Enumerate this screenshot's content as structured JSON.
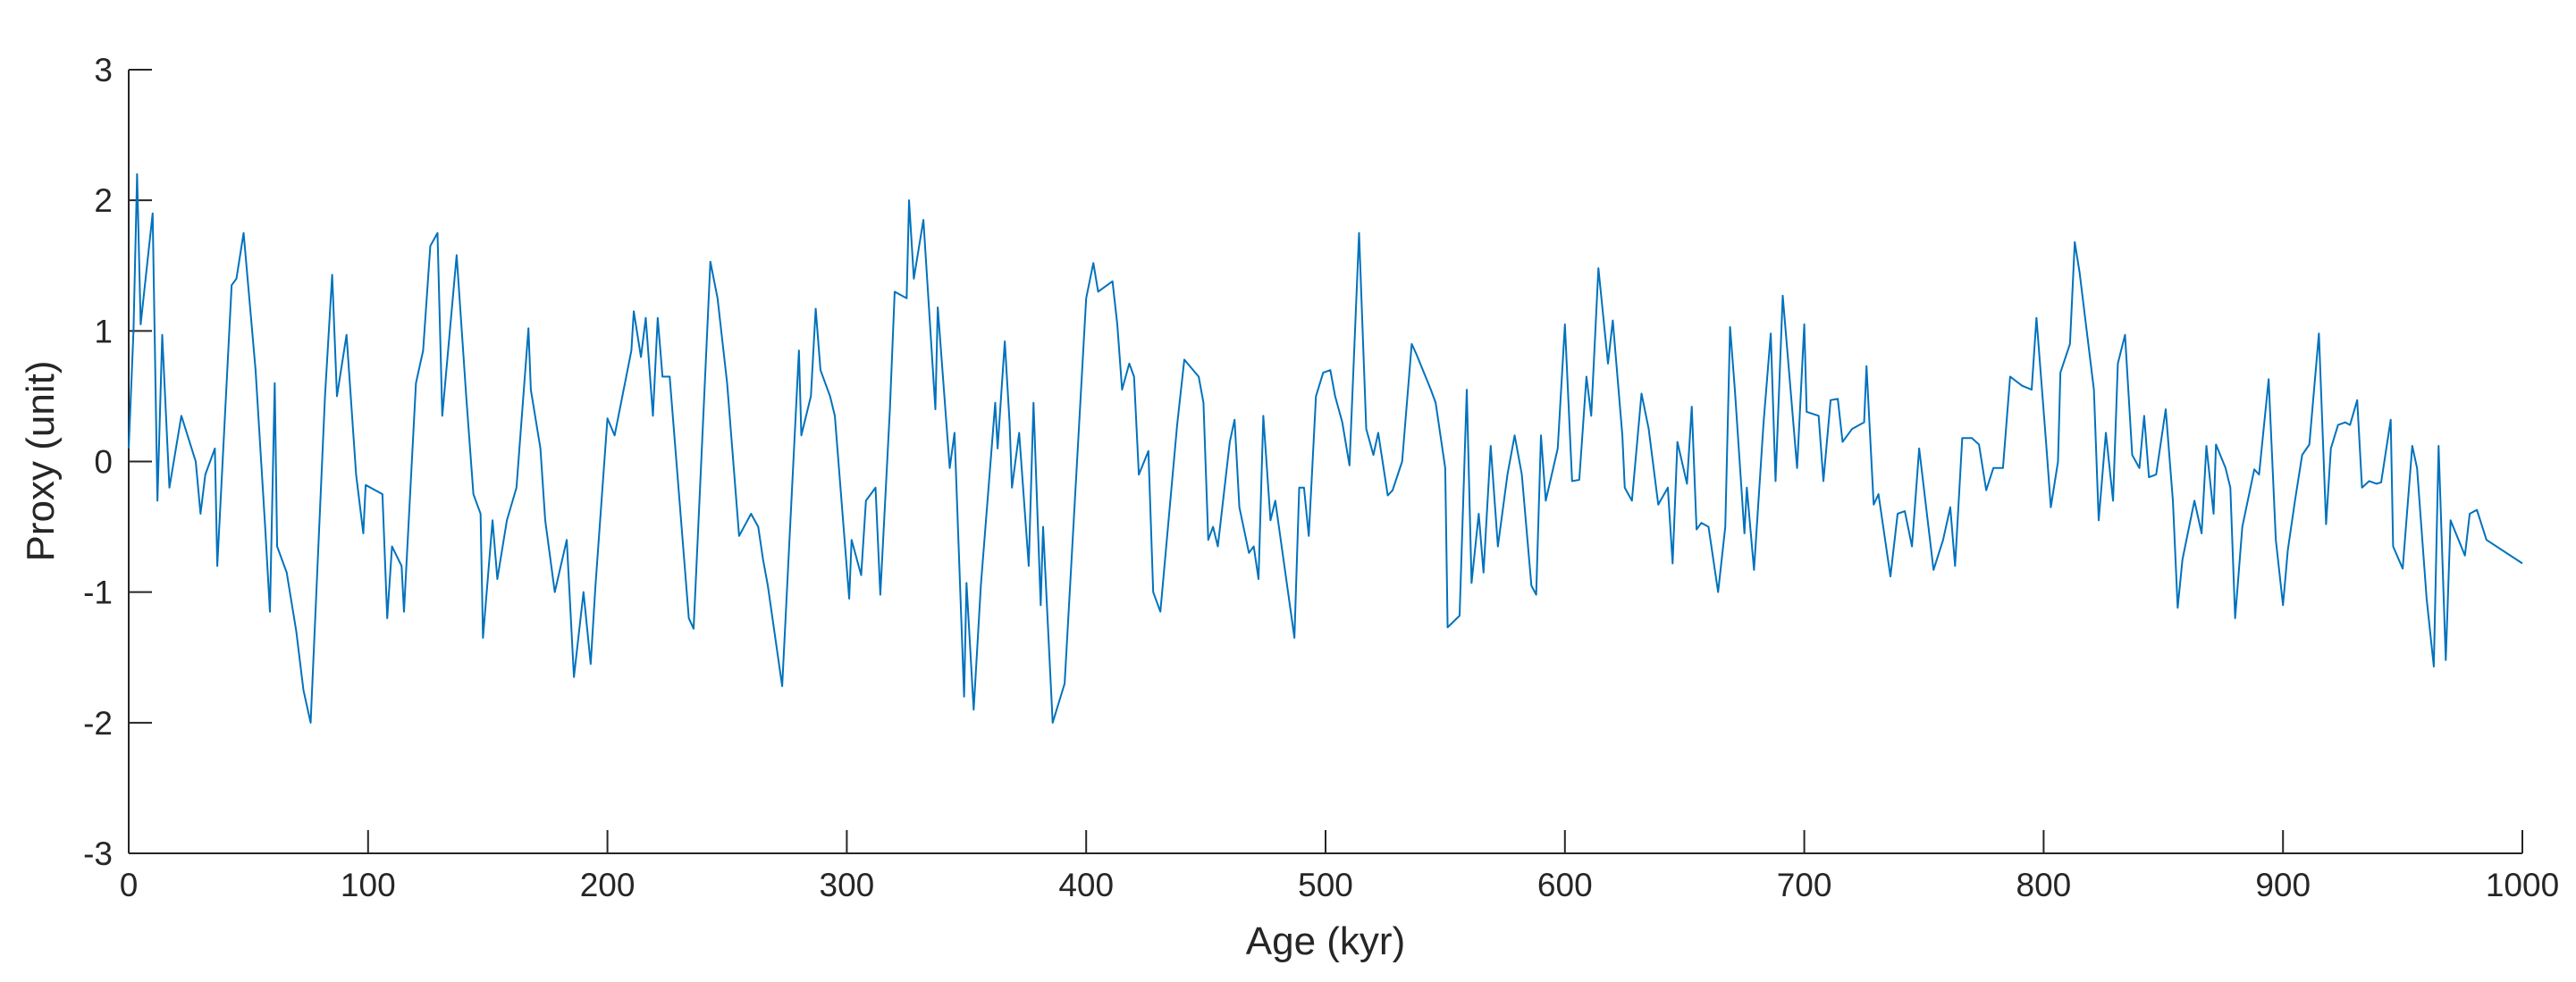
{
  "chart_data": {
    "type": "line",
    "xlabel": "Age (kyr)",
    "ylabel": "Proxy (unit)",
    "xlim": [
      0,
      1000
    ],
    "ylim": [
      -3,
      3
    ],
    "xticks": [
      0,
      100,
      200,
      300,
      400,
      500,
      600,
      700,
      800,
      900,
      1000
    ],
    "yticks": [
      -3,
      -2,
      -1,
      0,
      1,
      2,
      3
    ],
    "series": [
      {
        "color": "#0072bd",
        "x": [
          0,
          2,
          3.5,
          5,
          10,
          12,
          14,
          17,
          22,
          28,
          30,
          32,
          36,
          37,
          43,
          45,
          48,
          53,
          57,
          59,
          61,
          62,
          66,
          70,
          73,
          76,
          82,
          85,
          87,
          91,
          95,
          98,
          99,
          106,
          108,
          110,
          114,
          115,
          120,
          123,
          126,
          129,
          131,
          137,
          141,
          144,
          147,
          148,
          152,
          154,
          158,
          162,
          167,
          168,
          172,
          174,
          178,
          183,
          186,
          190,
          193,
          195,
          200,
          203,
          210,
          211,
          214,
          216,
          219,
          221,
          223,
          226,
          234,
          236,
          243,
          246,
          250,
          255,
          260,
          263,
          265,
          267,
          273,
          280,
          281,
          285,
          287,
          289,
          293,
          295,
          301,
          302,
          306,
          308,
          312,
          314,
          318,
          320,
          325,
          326,
          328,
          332,
          337,
          338,
          343,
          345,
          349,
          350,
          353,
          356,
          362,
          363,
          366,
          368,
          369,
          372,
          376,
          378,
          381,
          382,
          386,
          391,
          400,
          403,
          405,
          411,
          413,
          415,
          418,
          420,
          422,
          426,
          428,
          431,
          438,
          441,
          447,
          449,
          451,
          453,
          455,
          460,
          462,
          464,
          468,
          470,
          472,
          474,
          477,
          479,
          487,
          489,
          491,
          493,
          496,
          499,
          502,
          504,
          507,
          510,
          514,
          517,
          520,
          522,
          526,
          528,
          532,
          536,
          538,
          544,
          546,
          550,
          551,
          556,
          559,
          561,
          564,
          566,
          569,
          572,
          576,
          579,
          582,
          586,
          588,
          590,
          592,
          597,
          600,
          603,
          606,
          609,
          611,
          614,
          618,
          620,
          624,
          625,
          628,
          632,
          635,
          639,
          643,
          645,
          647,
          651,
          653,
          655,
          657,
          660,
          664,
          667,
          669,
          671,
          675,
          676,
          679,
          683,
          686,
          688,
          691,
          697,
          700,
          701,
          706,
          708,
          711,
          714,
          716,
          720,
          725,
          726,
          729,
          731,
          736,
          739,
          742,
          745,
          748,
          754,
          758,
          761,
          763,
          766,
          770,
          773,
          776,
          779,
          783,
          786,
          791,
          795,
          797,
          801,
          803,
          806,
          807,
          811,
          813,
          815,
          821,
          823,
          826,
          829,
          831,
          834,
          837,
          840,
          842,
          844,
          847,
          851,
          854,
          856,
          858,
          863,
          866,
          868,
          871,
          872,
          876,
          878,
          880,
          883,
          888,
          890,
          894,
          897,
          900,
          902,
          905,
          908,
          911,
          915,
          918,
          920,
          923,
          926,
          928,
          931,
          933,
          936,
          939,
          941,
          945,
          946,
          950,
          954,
          956,
          960,
          963,
          965,
          968,
          970,
          976,
          978,
          981,
          985,
          1000
        ],
        "values": [
          0.1,
          1.0,
          2.2,
          1.05,
          1.9,
          -0.3,
          0.97,
          -0.2,
          0.35,
          0,
          -0.4,
          -0.1,
          0.1,
          -0.8,
          1.35,
          1.4,
          1.75,
          0.7,
          -0.5,
          -1.15,
          0.6,
          -0.65,
          -0.85,
          -1.3,
          -1.75,
          -2.0,
          0.5,
          1.43,
          0.5,
          0.97,
          -0.1,
          -0.55,
          -0.18,
          -0.25,
          -1.2,
          -0.65,
          -0.8,
          -1.15,
          0.6,
          0.85,
          1.65,
          1.75,
          0.35,
          1.58,
          0.5,
          -0.25,
          -0.4,
          -1.35,
          -0.45,
          -0.9,
          -0.45,
          -0.2,
          1.02,
          0.55,
          0.1,
          -0.45,
          -1.0,
          -0.6,
          -1.65,
          -1.0,
          -1.55,
          -0.95,
          0.33,
          0.2,
          0.85,
          1.15,
          0.8,
          1.1,
          0.35,
          1.1,
          0.65,
          0.65,
          -1.2,
          -1.28,
          1.53,
          1.25,
          0.6,
          -0.57,
          -0.4,
          -0.5,
          -0.75,
          -0.95,
          -1.72,
          0.85,
          0.2,
          0.5,
          1.17,
          0.7,
          0.5,
          0.35,
          -1.05,
          -0.6,
          -0.87,
          -0.3,
          -0.2,
          -1.02,
          0.4,
          1.3,
          1.25,
          2.0,
          1.4,
          1.85,
          0.4,
          1.18,
          -0.05,
          0.22,
          -1.8,
          -0.93,
          -1.9,
          -0.95,
          0.45,
          0.1,
          0.92,
          0.3,
          -0.2,
          0.22,
          -0.8,
          0.45,
          -1.1,
          -0.5,
          -2.0,
          -1.7,
          1.25,
          1.52,
          1.3,
          1.38,
          1.05,
          0.55,
          0.75,
          0.65,
          -0.1,
          0.08,
          -1.0,
          -1.15,
          0.28,
          0.78,
          0.65,
          0.45,
          -0.6,
          -0.5,
          -0.65,
          0.15,
          0.32,
          -0.35,
          -0.7,
          -0.65,
          -0.9,
          0.35,
          -0.45,
          -0.3,
          -1.35,
          -0.2,
          -0.2,
          -0.57,
          0.5,
          0.68,
          0.7,
          0.5,
          0.3,
          -0.03,
          1.75,
          0.25,
          0.05,
          0.22,
          -0.26,
          -0.22,
          0,
          0.9,
          0.82,
          0.55,
          0.45,
          -0.05,
          -1.27,
          -1.18,
          0.55,
          -0.93,
          -0.4,
          -0.85,
          0.12,
          -0.65,
          -0.1,
          0.2,
          -0.1,
          -0.95,
          -1.02,
          0.2,
          -0.3,
          0.1,
          1.05,
          -0.15,
          -0.14,
          0.65,
          0.35,
          1.48,
          0.75,
          1.08,
          0.2,
          -0.2,
          -0.3,
          0.52,
          0.25,
          -0.33,
          -0.2,
          -0.78,
          0.15,
          -0.17,
          0.42,
          -0.52,
          -0.47,
          -0.5,
          -1.0,
          -0.5,
          1.03,
          0.55,
          -0.55,
          -0.2,
          -0.83,
          0.3,
          0.98,
          -0.15,
          1.27,
          -0.05,
          1.05,
          0.38,
          0.35,
          -0.15,
          0.47,
          0.48,
          0.15,
          0.25,
          0.3,
          0.73,
          -0.33,
          -0.25,
          -0.88,
          -0.4,
          -0.38,
          -0.65,
          0.1,
          -0.83,
          -0.6,
          -0.35,
          -0.8,
          0.18,
          0.18,
          0.13,
          -0.22,
          -0.05,
          -0.05,
          0.65,
          0.58,
          0.55,
          1.1,
          0.15,
          -0.35,
          0,
          0.68,
          0.9,
          1.68,
          1.45,
          0.55,
          -0.45,
          0.22,
          -0.3,
          0.75,
          0.97,
          0.05,
          -0.05,
          0.35,
          -0.12,
          -0.1,
          0.4,
          -0.3,
          -1.12,
          -0.75,
          -0.3,
          -0.55,
          0.12,
          -0.4,
          0.13,
          -0.05,
          -0.2,
          -1.2,
          -0.5,
          -0.06,
          -0.1,
          0.63,
          -0.6,
          -1.1,
          -0.68,
          -0.3,
          0.05,
          0.13,
          0.98,
          -0.48,
          0.1,
          0.28,
          0.3,
          0.28,
          0.47,
          -0.2,
          -0.15,
          -0.17,
          -0.16,
          0.32,
          -0.65,
          -0.82,
          0.12,
          -0.05,
          -1.05,
          -1.57,
          0.12,
          -1.52,
          -0.45,
          -0.72,
          -0.4,
          -0.37,
          -0.6,
          -0.78
        ]
      }
    ]
  }
}
